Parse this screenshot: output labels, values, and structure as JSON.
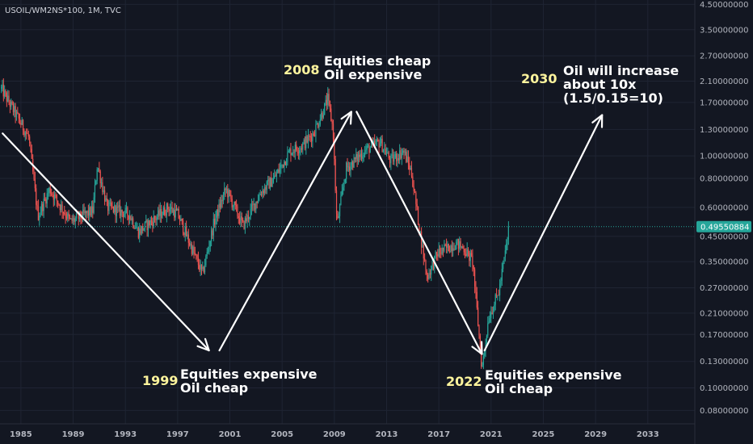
{
  "header": {
    "symbol_title": "USOIL/WM2NS*100, 1M, TVC"
  },
  "colors": {
    "background": "#131722",
    "up": "#26a69a",
    "down": "#ef5350",
    "grid": "#1f2433",
    "axis_text": "#b2b5be",
    "price_label_bg": "#26a69a",
    "year_highlight": "#fff59d"
  },
  "chart_data": {
    "type": "candlestick",
    "symbol": "USOIL/WM2NS*100",
    "interval": "1M",
    "source": "TVC",
    "y_scale": "log",
    "ylim": [
      0.07,
      4.7
    ],
    "xlim": [
      1983.4,
      2036.6
    ],
    "y_ticks": [
      "4.50000000",
      "3.50000000",
      "2.70000000",
      "2.10000000",
      "1.70000000",
      "1.30000000",
      "1.00000000",
      "0.80000000",
      "0.60000000",
      "0.45000000",
      "0.35000000",
      "0.27000000",
      "0.21000000",
      "0.17000000",
      "0.13000000",
      "0.10000000",
      "0.08000000"
    ],
    "y_tick_values": [
      4.5,
      3.5,
      2.7,
      2.1,
      1.7,
      1.3,
      1.0,
      0.8,
      0.6,
      0.45,
      0.35,
      0.27,
      0.21,
      0.17,
      0.13,
      0.1,
      0.08
    ],
    "x_ticks": [
      "1985",
      "1989",
      "1993",
      "1997",
      "2001",
      "2005",
      "2009",
      "2013",
      "2017",
      "2021",
      "2025",
      "2029",
      "2033"
    ],
    "x_tick_values": [
      1985,
      1989,
      1993,
      1997,
      2001,
      2005,
      2009,
      2013,
      2017,
      2021,
      2025,
      2029,
      2033
    ],
    "last_price": "0.49550884",
    "last_price_value": 0.4955,
    "anchors": [
      [
        1983.5,
        1.95
      ],
      [
        1984.5,
        1.55
      ],
      [
        1985.6,
        1.2
      ],
      [
        1986.3,
        0.55
      ],
      [
        1987.2,
        0.72
      ],
      [
        1988.8,
        0.52
      ],
      [
        1990.5,
        0.58
      ],
      [
        1990.85,
        0.92
      ],
      [
        1991.6,
        0.6
      ],
      [
        1993.3,
        0.56
      ],
      [
        1994.0,
        0.47
      ],
      [
        1996.3,
        0.6
      ],
      [
        1997.0,
        0.56
      ],
      [
        1998.9,
        0.31
      ],
      [
        1999.8,
        0.52
      ],
      [
        2000.7,
        0.72
      ],
      [
        2002.0,
        0.5
      ],
      [
        2003.4,
        0.7
      ],
      [
        2004.4,
        0.8
      ],
      [
        2005.6,
        1.05
      ],
      [
        2006.5,
        1.1
      ],
      [
        2007.4,
        1.25
      ],
      [
        2008.5,
        1.75
      ],
      [
        2008.9,
        1.3
      ],
      [
        2009.2,
        0.5
      ],
      [
        2009.9,
        0.88
      ],
      [
        2011.3,
        1.05
      ],
      [
        2012.5,
        1.15
      ],
      [
        2013.3,
        0.95
      ],
      [
        2014.3,
        1.05
      ],
      [
        2014.9,
        0.85
      ],
      [
        2015.6,
        0.45
      ],
      [
        2016.1,
        0.3
      ],
      [
        2016.9,
        0.38
      ],
      [
        2018.3,
        0.42
      ],
      [
        2018.9,
        0.4
      ],
      [
        2019.6,
        0.35
      ],
      [
        2020.3,
        0.12
      ],
      [
        2020.8,
        0.2
      ],
      [
        2021.6,
        0.26
      ],
      [
        2022.2,
        0.42
      ],
      [
        2022.4,
        0.5
      ]
    ],
    "arrows": [
      {
        "from": [
          1983.6,
          1.25
        ],
        "to": [
          1999.4,
          0.145
        ]
      },
      {
        "from": [
          2000.2,
          0.145
        ],
        "to": [
          2010.3,
          1.55
        ]
      },
      {
        "from": [
          2010.7,
          1.55
        ],
        "to": [
          2020.3,
          0.14
        ]
      },
      {
        "from": [
          2020.5,
          0.145
        ],
        "to": [
          2029.5,
          1.5
        ]
      }
    ]
  },
  "annotations": [
    {
      "year": "1999",
      "lines": [
        "Equities expensive",
        "Oil cheap"
      ]
    },
    {
      "year": "2008",
      "lines": [
        "Equities cheap",
        "Oil expensive"
      ]
    },
    {
      "year": "2022",
      "lines": [
        "Equities expensive",
        "Oil cheap"
      ]
    },
    {
      "year": "2030",
      "lines": [
        "Oil will increase",
        "about 10x",
        "(1.5/0.15=10)"
      ]
    }
  ]
}
